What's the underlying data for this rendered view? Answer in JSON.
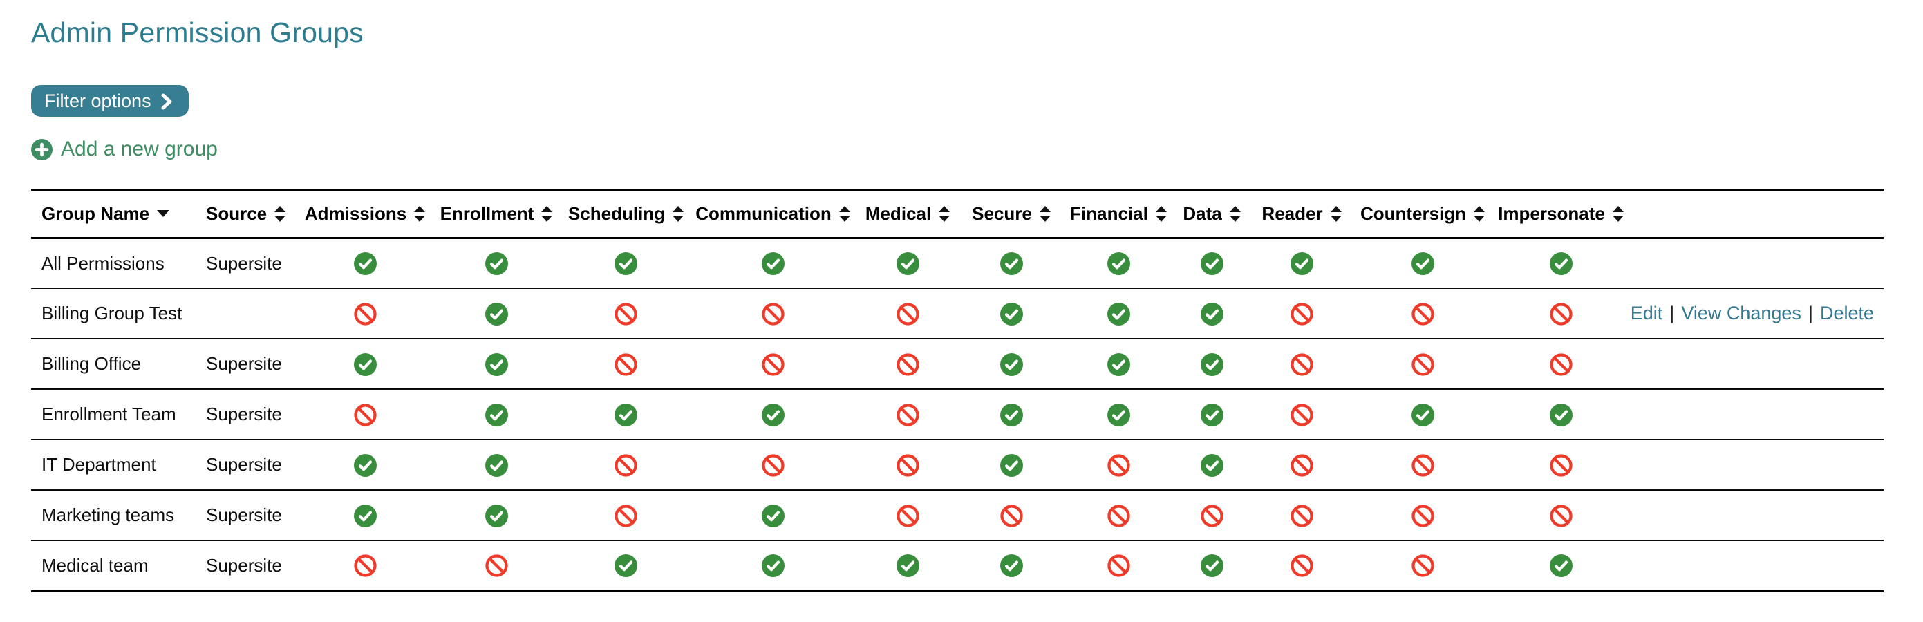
{
  "page": {
    "title": "Admin Permission Groups"
  },
  "toolbar": {
    "filter_button_label": "Filter options",
    "add_group_label": "Add a new group"
  },
  "colors": {
    "title_teal": "#2c7d8f",
    "button_teal": "#377e92",
    "link_teal": "#33768f",
    "add_green": "#3e8c62",
    "check_green": "#388e3c",
    "deny_red": "#ee3b2a",
    "border_black": "#000000"
  },
  "table": {
    "actions_separator": "|",
    "columns": [
      {
        "key": "group_name",
        "label": "Group Name",
        "sort": "down"
      },
      {
        "key": "source",
        "label": "Source",
        "sort": "both"
      },
      {
        "key": "admissions",
        "label": "Admissions",
        "sort": "both"
      },
      {
        "key": "enrollment",
        "label": "Enrollment",
        "sort": "both"
      },
      {
        "key": "scheduling",
        "label": "Scheduling",
        "sort": "both"
      },
      {
        "key": "communication",
        "label": "Communication",
        "sort": "both"
      },
      {
        "key": "medical",
        "label": "Medical",
        "sort": "both"
      },
      {
        "key": "secure",
        "label": "Secure",
        "sort": "both"
      },
      {
        "key": "financial",
        "label": "Financial",
        "sort": "both"
      },
      {
        "key": "data",
        "label": "Data",
        "sort": "both"
      },
      {
        "key": "reader",
        "label": "Reader",
        "sort": "both"
      },
      {
        "key": "countersign",
        "label": "Countersign",
        "sort": "both"
      },
      {
        "key": "impersonate",
        "label": "Impersonate",
        "sort": "both"
      }
    ],
    "rows": [
      {
        "group_name": "All Permissions",
        "source": "Supersite",
        "permissions": [
          true,
          true,
          true,
          true,
          true,
          true,
          true,
          true,
          true,
          true,
          true
        ],
        "actions": null
      },
      {
        "group_name": "Billing Group Test",
        "source": "",
        "permissions": [
          false,
          true,
          false,
          false,
          false,
          true,
          true,
          true,
          false,
          false,
          false
        ],
        "actions": [
          {
            "name": "edit-link",
            "label": "Edit"
          },
          {
            "name": "view-changes-link",
            "label": "View Changes"
          },
          {
            "name": "delete-link",
            "label": "Delete"
          }
        ]
      },
      {
        "group_name": "Billing Office",
        "source": "Supersite",
        "permissions": [
          true,
          true,
          false,
          false,
          false,
          true,
          true,
          true,
          false,
          false,
          false
        ],
        "actions": null
      },
      {
        "group_name": "Enrollment Team",
        "source": "Supersite",
        "permissions": [
          false,
          true,
          true,
          true,
          false,
          true,
          true,
          true,
          false,
          true,
          true
        ],
        "actions": null
      },
      {
        "group_name": "IT Department",
        "source": "Supersite",
        "permissions": [
          true,
          true,
          false,
          false,
          false,
          true,
          false,
          true,
          false,
          false,
          false
        ],
        "actions": null
      },
      {
        "group_name": "Marketing teams",
        "source": "Supersite",
        "permissions": [
          true,
          true,
          false,
          true,
          false,
          false,
          false,
          false,
          false,
          false,
          false
        ],
        "actions": null
      },
      {
        "group_name": "Medical team",
        "source": "Supersite",
        "permissions": [
          false,
          false,
          true,
          true,
          true,
          true,
          false,
          true,
          false,
          false,
          true
        ],
        "actions": null
      }
    ]
  }
}
